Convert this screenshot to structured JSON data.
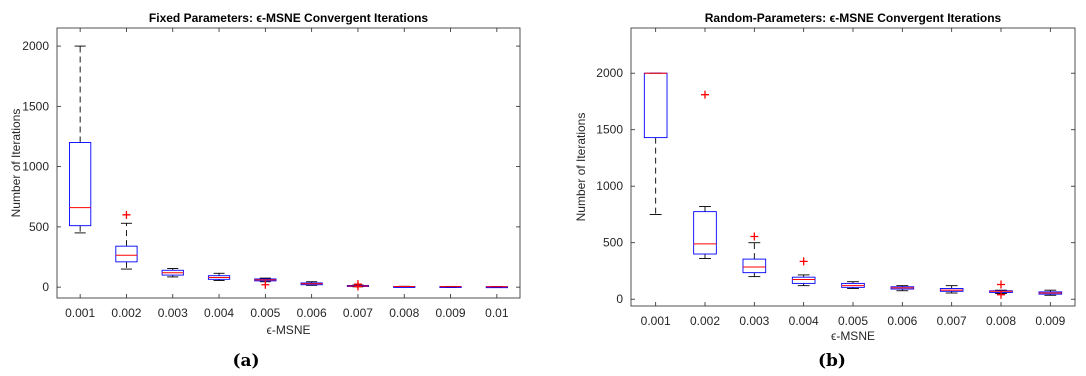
{
  "captions": [
    "(a)",
    "(b)"
  ],
  "chart_data": [
    {
      "type": "boxplot",
      "title": "Fixed Parameters: ϵ-MSNE Convergent Iterations",
      "xlabel": "ϵ-MSNE",
      "ylabel": "Number of Iterations",
      "ylim": [
        -90,
        2150
      ],
      "yticks": [
        0,
        500,
        1000,
        1500,
        2000
      ],
      "grid": false,
      "categories": [
        "0.001",
        "0.002",
        "0.003",
        "0.004",
        "0.005",
        "0.006",
        "0.007",
        "0.008",
        "0.009",
        "0.01"
      ],
      "boxes": [
        {
          "whisker_low": 450,
          "q1": 510,
          "median": 660,
          "q3": 1200,
          "whisker_high": 2000,
          "outliers": []
        },
        {
          "whisker_low": 150,
          "q1": 210,
          "median": 265,
          "q3": 340,
          "whisker_high": 530,
          "outliers": [
            600
          ]
        },
        {
          "whisker_low": 85,
          "q1": 100,
          "median": 120,
          "q3": 140,
          "whisker_high": 155,
          "outliers": []
        },
        {
          "whisker_low": 55,
          "q1": 65,
          "median": 80,
          "q3": 95,
          "whisker_high": 115,
          "outliers": []
        },
        {
          "whisker_low": 45,
          "q1": 52,
          "median": 60,
          "q3": 68,
          "whisker_high": 75,
          "outliers": [
            20
          ]
        },
        {
          "whisker_low": 15,
          "q1": 20,
          "median": 28,
          "q3": 35,
          "whisker_high": 45,
          "outliers": []
        },
        {
          "whisker_low": 3,
          "q1": 6,
          "median": 10,
          "q3": 14,
          "whisker_high": 18,
          "outliers": [
            25,
            5
          ]
        },
        {
          "whisker_low": 3,
          "q1": 4,
          "median": 5,
          "q3": 6,
          "whisker_high": 7,
          "outliers": []
        },
        {
          "whisker_low": 2,
          "q1": 3,
          "median": 4,
          "q3": 5,
          "whisker_high": 6,
          "outliers": []
        },
        {
          "whisker_low": 2,
          "q1": 3,
          "median": 3,
          "q3": 4,
          "whisker_high": 5,
          "outliers": []
        }
      ]
    },
    {
      "type": "boxplot",
      "title": "Random-Parameters: ϵ-MSNE Convergent Iterations",
      "xlabel": "ϵ-MSNE",
      "ylabel": "Number of Iterations",
      "ylim": [
        -60,
        2400
      ],
      "yticks": [
        0,
        500,
        1000,
        1500,
        2000
      ],
      "grid": false,
      "categories": [
        "0.001",
        "0.002",
        "0.003",
        "0.004",
        "0.005",
        "0.006",
        "0.007",
        "0.008",
        "0.009"
      ],
      "boxes": [
        {
          "whisker_low": 750,
          "q1": 1430,
          "median": 2000,
          "q3": 2000,
          "whisker_high": 2000,
          "outliers": []
        },
        {
          "whisker_low": 360,
          "q1": 400,
          "median": 490,
          "q3": 775,
          "whisker_high": 820,
          "outliers": [
            1810
          ]
        },
        {
          "whisker_low": 200,
          "q1": 235,
          "median": 285,
          "q3": 355,
          "whisker_high": 500,
          "outliers": [
            555
          ]
        },
        {
          "whisker_low": 120,
          "q1": 140,
          "median": 175,
          "q3": 195,
          "whisker_high": 215,
          "outliers": [
            335
          ]
        },
        {
          "whisker_low": 95,
          "q1": 105,
          "median": 120,
          "q3": 140,
          "whisker_high": 155,
          "outliers": []
        },
        {
          "whisker_low": 75,
          "q1": 90,
          "median": 100,
          "q3": 110,
          "whisker_high": 120,
          "outliers": []
        },
        {
          "whisker_low": 55,
          "q1": 70,
          "median": 80,
          "q3": 95,
          "whisker_high": 120,
          "outliers": []
        },
        {
          "whisker_low": 50,
          "q1": 60,
          "median": 70,
          "q3": 75,
          "whisker_high": 80,
          "outliers": [
            130,
            40
          ]
        },
        {
          "whisker_low": 35,
          "q1": 45,
          "median": 55,
          "q3": 65,
          "whisker_high": 80,
          "outliers": []
        }
      ]
    }
  ],
  "colors": {
    "box": "#0000ff",
    "median": "#ff0000",
    "outlier": "#ff0000",
    "whisker": "#000000",
    "axis": "#262626"
  }
}
